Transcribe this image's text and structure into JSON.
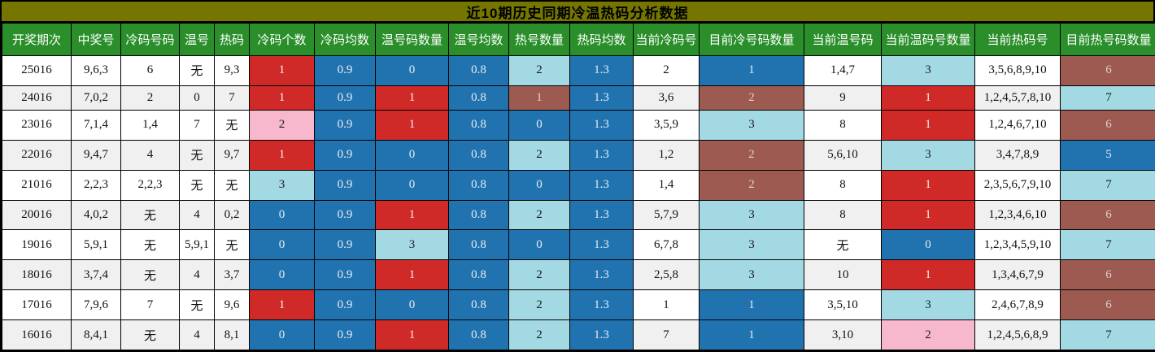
{
  "title": "近10期历史同期冷温热码分析数据",
  "palette": {
    "red": "#d02a28",
    "blue": "#2173b0",
    "light_blue": "#a2d9e3",
    "brown": "#9c5a50",
    "pink": "#f7b7cd",
    "title_olive": "#757500",
    "header_green": "#2a8f2a",
    "row_odd": "#ffffff",
    "row_even": "#f0f0f0"
  },
  "table": {
    "columns": [
      "开奖期次",
      "中奖号",
      "冷码号码",
      "温号",
      "热码",
      "冷码个数",
      "冷码均数",
      "温号码数量",
      "温号均数",
      "热号数量",
      "热码均数",
      "当前冷码号",
      "目前冷号码数量",
      "当前温号码",
      "当前温码号数量",
      "当前热码号",
      "目前热号码数量"
    ],
    "rows": [
      {
        "cells": [
          [
            "25016",
            "p"
          ],
          [
            "9,6,3",
            "p"
          ],
          [
            "6",
            "p"
          ],
          [
            "无",
            "p"
          ],
          [
            "9,3",
            "p"
          ],
          [
            "1",
            "r"
          ],
          [
            "0.9",
            "b"
          ],
          [
            "0",
            "b"
          ],
          [
            "0.8",
            "b"
          ],
          [
            "2",
            "lb"
          ],
          [
            "1.3",
            "b"
          ],
          [
            "2",
            "p"
          ],
          [
            "1",
            "b"
          ],
          [
            "1,4,7",
            "p"
          ],
          [
            "3",
            "lb"
          ],
          [
            "3,5,6,8,9,10",
            "p"
          ],
          [
            "6",
            "br"
          ]
        ]
      },
      {
        "cells": [
          [
            "24016",
            "p"
          ],
          [
            "7,0,2",
            "p"
          ],
          [
            "2",
            "p"
          ],
          [
            "0",
            "p"
          ],
          [
            "7",
            "p"
          ],
          [
            "1",
            "r"
          ],
          [
            "0.9",
            "b"
          ],
          [
            "1",
            "r"
          ],
          [
            "0.8",
            "b"
          ],
          [
            "1",
            "br"
          ],
          [
            "1.3",
            "b"
          ],
          [
            "3,6",
            "p"
          ],
          [
            "2",
            "br"
          ],
          [
            "9",
            "p"
          ],
          [
            "1",
            "r"
          ],
          [
            "1,2,4,5,7,8,10",
            "p"
          ],
          [
            "7",
            "lb"
          ]
        ]
      },
      {
        "cells": [
          [
            "23016",
            "p"
          ],
          [
            "7,1,4",
            "p"
          ],
          [
            "1,4",
            "p"
          ],
          [
            "7",
            "p"
          ],
          [
            "无",
            "p"
          ],
          [
            "2",
            "pk"
          ],
          [
            "0.9",
            "b"
          ],
          [
            "1",
            "r"
          ],
          [
            "0.8",
            "b"
          ],
          [
            "0",
            "b"
          ],
          [
            "1.3",
            "b"
          ],
          [
            "3,5,9",
            "p"
          ],
          [
            "3",
            "lb"
          ],
          [
            "8",
            "p"
          ],
          [
            "1",
            "r"
          ],
          [
            "1,2,4,6,7,10",
            "p"
          ],
          [
            "6",
            "br"
          ]
        ]
      },
      {
        "cells": [
          [
            "22016",
            "p"
          ],
          [
            "9,4,7",
            "p"
          ],
          [
            "4",
            "p"
          ],
          [
            "无",
            "p"
          ],
          [
            "9,7",
            "p"
          ],
          [
            "1",
            "r"
          ],
          [
            "0.9",
            "b"
          ],
          [
            "0",
            "b"
          ],
          [
            "0.8",
            "b"
          ],
          [
            "2",
            "lb"
          ],
          [
            "1.3",
            "b"
          ],
          [
            "1,2",
            "p"
          ],
          [
            "2",
            "br"
          ],
          [
            "5,6,10",
            "p"
          ],
          [
            "3",
            "lb"
          ],
          [
            "3,4,7,8,9",
            "p"
          ],
          [
            "5",
            "b"
          ]
        ]
      },
      {
        "cells": [
          [
            "21016",
            "p"
          ],
          [
            "2,2,3",
            "p"
          ],
          [
            "2,2,3",
            "p"
          ],
          [
            "无",
            "p"
          ],
          [
            "无",
            "p"
          ],
          [
            "3",
            "lb"
          ],
          [
            "0.9",
            "b"
          ],
          [
            "0",
            "b"
          ],
          [
            "0.8",
            "b"
          ],
          [
            "0",
            "b"
          ],
          [
            "1.3",
            "b"
          ],
          [
            "1,4",
            "p"
          ],
          [
            "2",
            "br"
          ],
          [
            "8",
            "p"
          ],
          [
            "1",
            "r"
          ],
          [
            "2,3,5,6,7,9,10",
            "p"
          ],
          [
            "7",
            "lb"
          ]
        ]
      },
      {
        "cells": [
          [
            "20016",
            "p"
          ],
          [
            "4,0,2",
            "p"
          ],
          [
            "无",
            "p"
          ],
          [
            "4",
            "p"
          ],
          [
            "0,2",
            "p"
          ],
          [
            "0",
            "b"
          ],
          [
            "0.9",
            "b"
          ],
          [
            "1",
            "r"
          ],
          [
            "0.8",
            "b"
          ],
          [
            "2",
            "lb"
          ],
          [
            "1.3",
            "b"
          ],
          [
            "5,7,9",
            "p"
          ],
          [
            "3",
            "lb"
          ],
          [
            "8",
            "p"
          ],
          [
            "1",
            "r"
          ],
          [
            "1,2,3,4,6,10",
            "p"
          ],
          [
            "6",
            "br"
          ]
        ]
      },
      {
        "cells": [
          [
            "19016",
            "p"
          ],
          [
            "5,9,1",
            "p"
          ],
          [
            "无",
            "p"
          ],
          [
            "5,9,1",
            "p"
          ],
          [
            "无",
            "p"
          ],
          [
            "0",
            "b"
          ],
          [
            "0.9",
            "b"
          ],
          [
            "3",
            "lb"
          ],
          [
            "0.8",
            "b"
          ],
          [
            "0",
            "b"
          ],
          [
            "1.3",
            "b"
          ],
          [
            "6,7,8",
            "p"
          ],
          [
            "3",
            "lb"
          ],
          [
            "无",
            "p"
          ],
          [
            "0",
            "b"
          ],
          [
            "1,2,3,4,5,9,10",
            "p"
          ],
          [
            "7",
            "lb"
          ]
        ]
      },
      {
        "cells": [
          [
            "18016",
            "p"
          ],
          [
            "3,7,4",
            "p"
          ],
          [
            "无",
            "p"
          ],
          [
            "4",
            "p"
          ],
          [
            "3,7",
            "p"
          ],
          [
            "0",
            "b"
          ],
          [
            "0.9",
            "b"
          ],
          [
            "1",
            "r"
          ],
          [
            "0.8",
            "b"
          ],
          [
            "2",
            "lb"
          ],
          [
            "1.3",
            "b"
          ],
          [
            "2,5,8",
            "p"
          ],
          [
            "3",
            "lb"
          ],
          [
            "10",
            "p"
          ],
          [
            "1",
            "r"
          ],
          [
            "1,3,4,6,7,9",
            "p"
          ],
          [
            "6",
            "br"
          ]
        ]
      },
      {
        "cells": [
          [
            "17016",
            "p"
          ],
          [
            "7,9,6",
            "p"
          ],
          [
            "7",
            "p"
          ],
          [
            "无",
            "p"
          ],
          [
            "9,6",
            "p"
          ],
          [
            "1",
            "r"
          ],
          [
            "0.9",
            "b"
          ],
          [
            "0",
            "b"
          ],
          [
            "0.8",
            "b"
          ],
          [
            "2",
            "lb"
          ],
          [
            "1.3",
            "b"
          ],
          [
            "1",
            "p"
          ],
          [
            "1",
            "b"
          ],
          [
            "3,5,10",
            "p"
          ],
          [
            "3",
            "lb"
          ],
          [
            "2,4,6,7,8,9",
            "p"
          ],
          [
            "6",
            "br"
          ]
        ]
      },
      {
        "cells": [
          [
            "16016",
            "p"
          ],
          [
            "8,4,1",
            "p"
          ],
          [
            "无",
            "p"
          ],
          [
            "4",
            "p"
          ],
          [
            "8,1",
            "p"
          ],
          [
            "0",
            "b"
          ],
          [
            "0.9",
            "b"
          ],
          [
            "1",
            "r"
          ],
          [
            "0.8",
            "b"
          ],
          [
            "2",
            "lb"
          ],
          [
            "1.3",
            "b"
          ],
          [
            "7",
            "p"
          ],
          [
            "1",
            "b"
          ],
          [
            "3,10",
            "p"
          ],
          [
            "2",
            "pk"
          ],
          [
            "1,2,4,5,6,8,9",
            "p"
          ],
          [
            "7",
            "lb"
          ]
        ]
      }
    ]
  }
}
